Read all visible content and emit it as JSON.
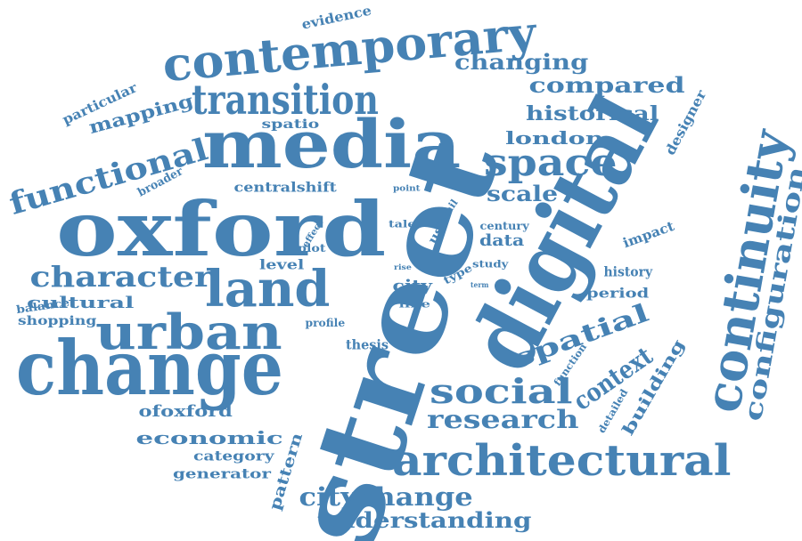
{
  "color": "#4682b4",
  "words": [
    "street",
    "digital",
    "oxford",
    "change",
    "media",
    "contemporary",
    "continuity",
    "urban",
    "transition",
    "land",
    "architectural",
    "functional",
    "social",
    "space",
    "character",
    "configuration",
    "research",
    "spatial",
    "context",
    "citychange",
    "understanding",
    "changing",
    "compared",
    "historical",
    "london",
    "scale",
    "economic",
    "mapping",
    "particular",
    "evidence",
    "cultural",
    "data",
    "building",
    "ofoxford",
    "pattern",
    "centralshift",
    "history",
    "period",
    "impact",
    "designer",
    "category",
    "generator",
    "shopping",
    "balance",
    "level",
    "city",
    "thesis",
    "spatio",
    "broader",
    "century",
    "detailed",
    "function",
    "profile",
    "line",
    "plot",
    "effect",
    "type",
    "study",
    "use",
    "retail",
    "tale",
    "point",
    "rise",
    "term"
  ]
}
